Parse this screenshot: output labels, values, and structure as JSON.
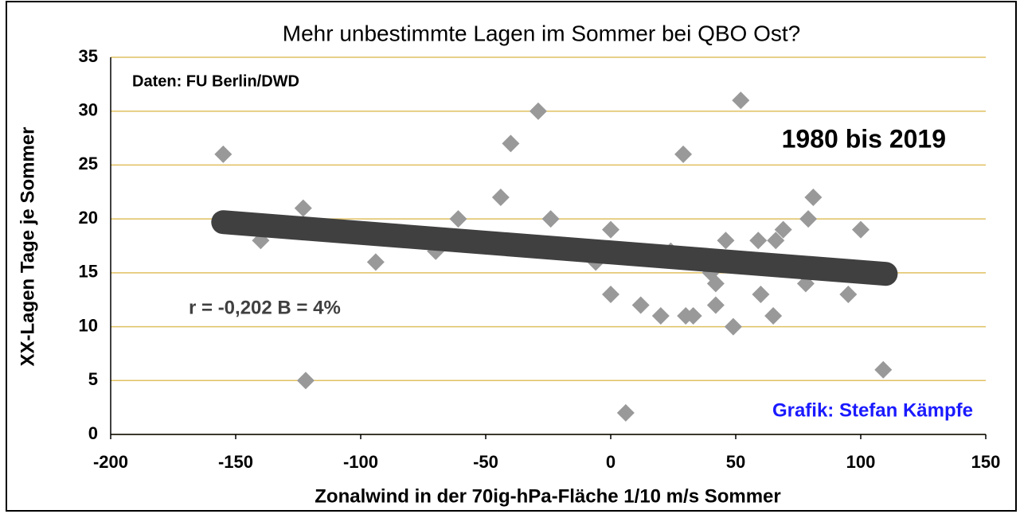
{
  "chart_data": {
    "type": "scatter",
    "title": "Mehr unbestimmte Lagen im Sommer bei QBO Ost?",
    "x_label": "Zonalwind  in der 70ig-hPa-Fläche 1/10 m/s Sommer",
    "y_label": "XX-Lagen Tage je Sommer",
    "annotations": [
      "Daten: FU Berlin/DWD",
      "1980 bis 2019",
      "r = -0,202  B =  4%",
      "Grafik: Stefan Kämpfe"
    ],
    "color": "#999999",
    "grid_color": "#e0c060",
    "x": [
      -155,
      -140,
      -123,
      -122,
      -94,
      -70,
      -61,
      -44,
      -40,
      -29,
      -24,
      -6,
      0,
      0,
      6,
      12,
      20,
      24,
      29,
      30,
      33,
      40,
      42,
      42,
      46,
      49,
      52,
      59,
      60,
      65,
      66,
      69,
      78,
      79,
      81,
      95,
      100,
      109
    ],
    "values": [
      26,
      18,
      21,
      5,
      16,
      17,
      20,
      22,
      27,
      30,
      20,
      16,
      19,
      13,
      2,
      12,
      11,
      17,
      26,
      11,
      11,
      15,
      14,
      12,
      18,
      10,
      31,
      18,
      13,
      11,
      18,
      19,
      14,
      20,
      22,
      13,
      19,
      6
    ],
    "trendline": {
      "x": [
        -155,
        110
      ],
      "values": [
        19.7,
        14.9
      ],
      "color": "#404040"
    },
    "xlim": [
      -200,
      150
    ],
    "xticks": [
      -200,
      -150,
      -100,
      -50,
      0,
      50,
      100,
      150
    ],
    "ylim": [
      0,
      35
    ],
    "yticks": [
      0,
      5,
      10,
      15,
      20,
      25,
      30,
      35
    ],
    "grid": true
  }
}
